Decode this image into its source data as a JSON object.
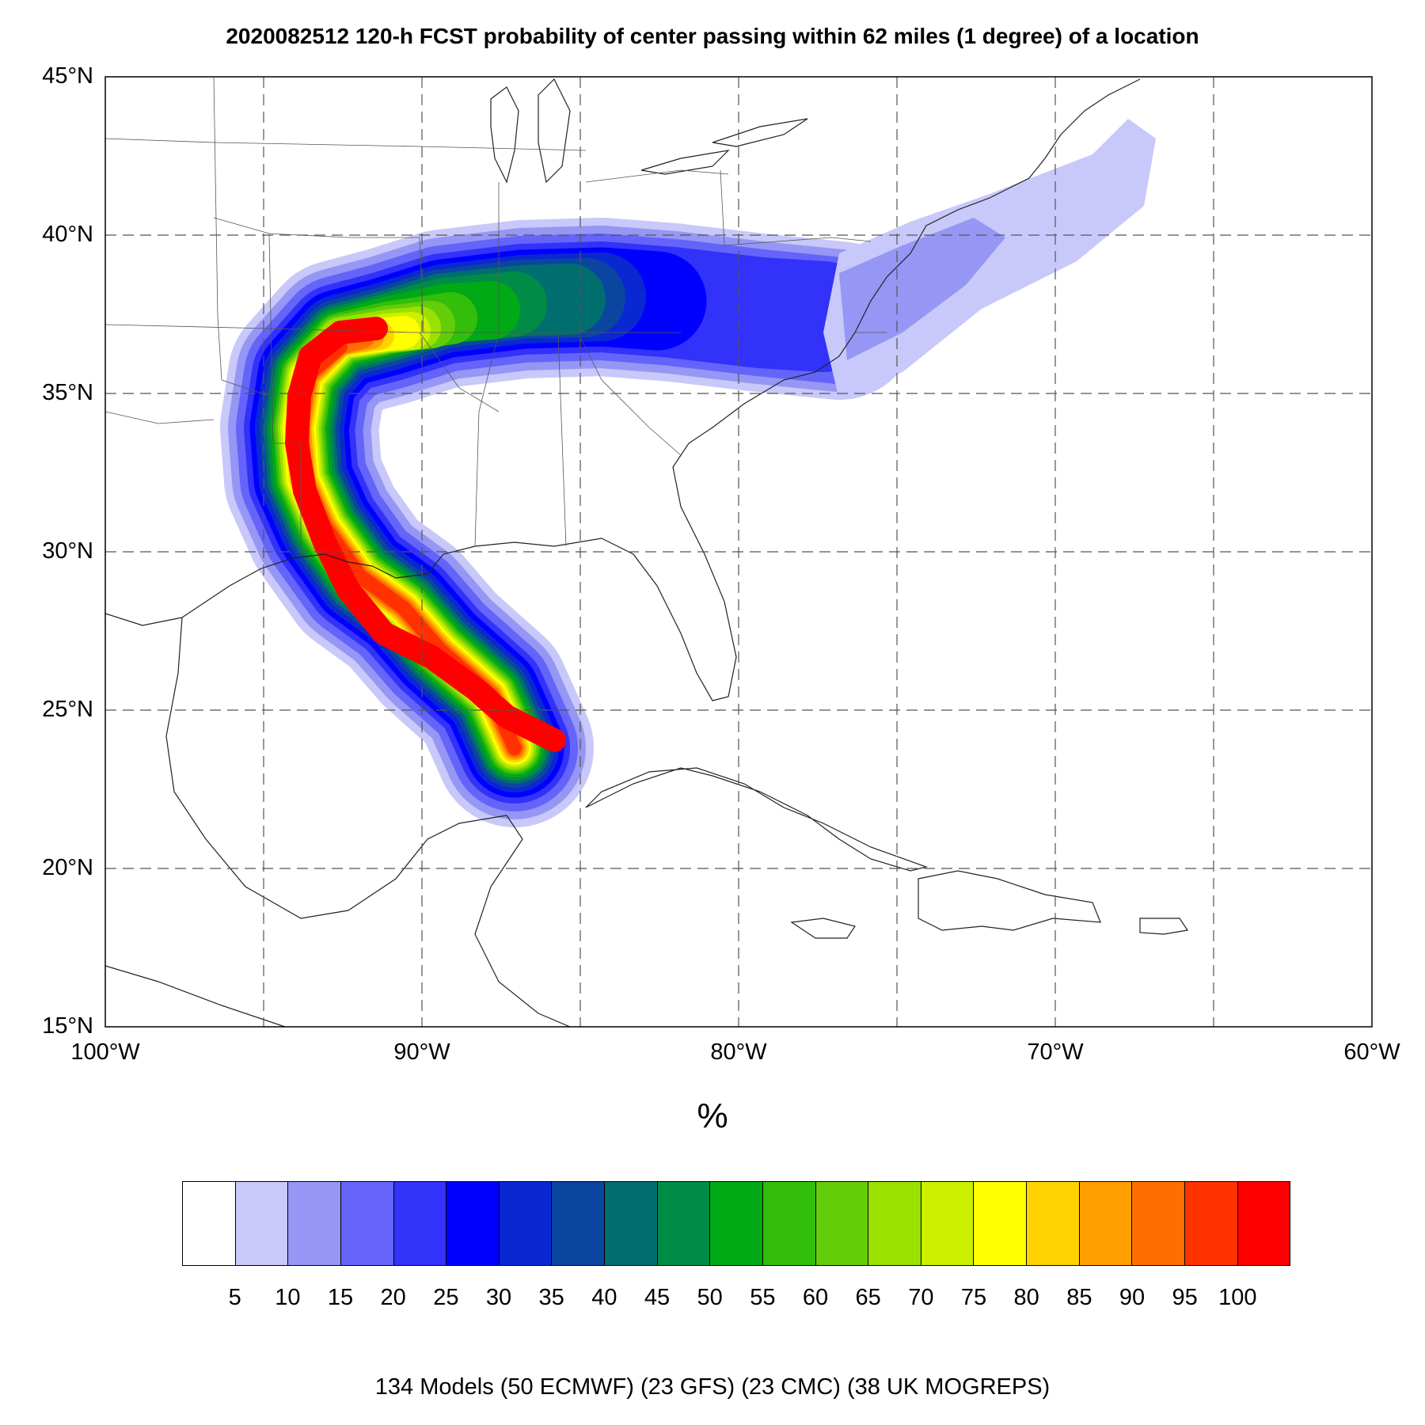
{
  "title": "2020082512 120-h FCST probability of center passing within 62 miles (1 degree) of a location",
  "map": {
    "lon_range": [
      -100,
      -60
    ],
    "lat_range": [
      15,
      45
    ],
    "gridlines": "dashed",
    "lat_labels": [
      "45°N",
      "40°N",
      "35°N",
      "30°N",
      "25°N",
      "20°N",
      "15°N"
    ],
    "lon_labels": [
      "100°W",
      "90°W",
      "80°W",
      "70°W",
      "60°W"
    ]
  },
  "unit_label": "%",
  "colorbar": {
    "colors": [
      "#ffffff",
      "#c8c8fa",
      "#9696f5",
      "#6464fa",
      "#3232fa",
      "#0000ff",
      "#0a28d2",
      "#0a46a0",
      "#006e6e",
      "#008c46",
      "#00aa14",
      "#32be0a",
      "#64cd0a",
      "#9be100",
      "#cdf000",
      "#ffff00",
      "#ffd200",
      "#ffa000",
      "#ff6e00",
      "#ff3200",
      "#ff0000"
    ],
    "ticks": [
      "5",
      "10",
      "15",
      "20",
      "25",
      "30",
      "35",
      "40",
      "45",
      "50",
      "55",
      "60",
      "65",
      "70",
      "75",
      "80",
      "85",
      "90",
      "95",
      "100"
    ]
  },
  "footer": "134 Models (50 ECMWF) (23 GFS) (23 CMC) (38 UK MOGREPS)"
}
